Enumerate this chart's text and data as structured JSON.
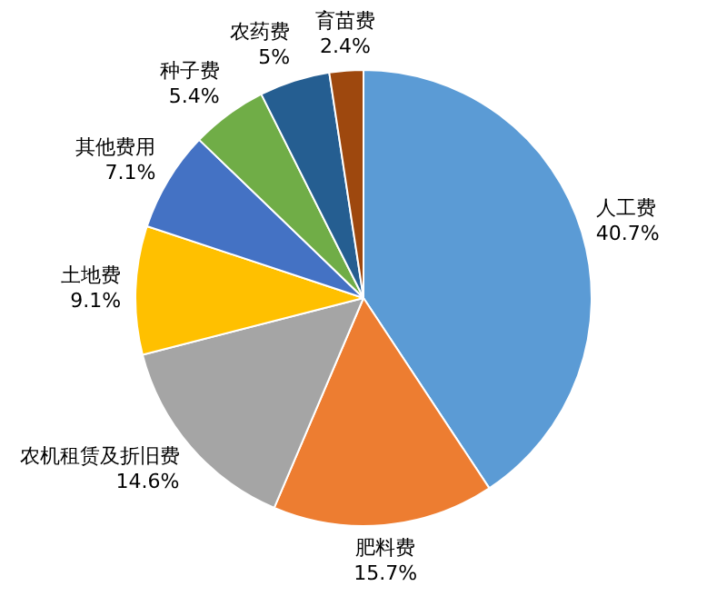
{
  "chart_data": {
    "type": "pie",
    "categories": [
      "人工费",
      "肥料费",
      "农机租赁及折旧费",
      "土地费",
      "其他费用",
      "种子费",
      "农药费",
      "育苗费"
    ],
    "values": [
      40.7,
      15.7,
      14.6,
      9.1,
      7.1,
      5.4,
      5,
      2.4
    ],
    "value_labels": [
      "40.7%",
      "15.7%",
      "14.6%",
      "9.1%",
      "7.1%",
      "5.4%",
      "5%",
      "2.4%"
    ],
    "colors": [
      "#5b9bd5",
      "#ed7d31",
      "#a5a5a5",
      "#ffc000",
      "#4472c4",
      "#70ad47",
      "#255e91",
      "#9e480e"
    ],
    "legend": false
  }
}
